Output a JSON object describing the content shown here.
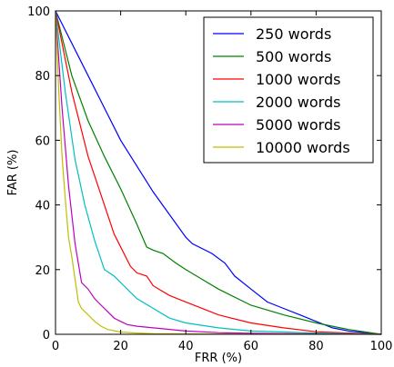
{
  "chart_data": {
    "type": "line",
    "title": "",
    "xlabel": "FRR (%)",
    "ylabel": "FAR (%)",
    "xlim": [
      0,
      100
    ],
    "ylim": [
      0,
      100
    ],
    "xticks": [
      0,
      20,
      40,
      60,
      80,
      100
    ],
    "yticks": [
      0,
      20,
      40,
      60,
      80,
      100
    ],
    "grid": false,
    "legend": "top-right",
    "series": [
      {
        "name": "250 words",
        "color": "#0000ff",
        "x": [
          0,
          10,
          20,
          30,
          40,
          42,
          48,
          52,
          55,
          60,
          65,
          70,
          75,
          80,
          85,
          90,
          95,
          100
        ],
        "y": [
          100,
          80,
          60,
          44,
          30,
          28,
          25,
          22,
          18,
          14,
          10,
          8,
          6,
          4,
          2,
          1,
          0.5,
          0
        ]
      },
      {
        "name": "500 words",
        "color": "#008000",
        "x": [
          0,
          5,
          10,
          15,
          20,
          25,
          28,
          30,
          33,
          37,
          40,
          45,
          50,
          60,
          70,
          80,
          90,
          100
        ],
        "y": [
          100,
          80,
          66,
          55,
          45,
          34,
          27,
          26,
          25,
          22,
          20,
          17,
          14,
          9,
          6,
          3.5,
          1.5,
          0
        ]
      },
      {
        "name": "1000 words",
        "color": "#ff0000",
        "x": [
          0,
          5,
          10,
          15,
          18,
          22,
          23,
          25,
          28,
          30,
          35,
          40,
          50,
          60,
          70,
          80,
          100
        ],
        "y": [
          100,
          75,
          55,
          40,
          31,
          23,
          21,
          19,
          18,
          15,
          12,
          10,
          6,
          3.5,
          2,
          0.8,
          0
        ]
      },
      {
        "name": "2000 words",
        "color": "#00bfbf",
        "x": [
          0,
          3,
          6,
          9,
          12,
          15,
          18,
          20,
          25,
          30,
          35,
          40,
          50,
          60,
          80,
          100
        ],
        "y": [
          100,
          75,
          54,
          40,
          29,
          20,
          18,
          16,
          11,
          8,
          5,
          3.5,
          2,
          1,
          0.4,
          0
        ]
      },
      {
        "name": "5000 words",
        "color": "#bf00bf",
        "x": [
          0,
          2,
          4,
          6,
          8,
          10,
          12,
          14,
          16,
          18,
          20,
          22,
          25,
          30,
          40,
          50,
          60,
          80,
          100
        ],
        "y": [
          100,
          70,
          46,
          28,
          16,
          14,
          11,
          9,
          7,
          5,
          4,
          3,
          2.5,
          2,
          1,
          0.5,
          0.3,
          0.1,
          0
        ]
      },
      {
        "name": "10000 words",
        "color": "#bfbf00",
        "x": [
          0,
          1,
          2,
          3,
          4,
          5,
          6,
          7,
          8,
          10,
          12,
          14,
          16,
          20,
          25,
          30,
          40,
          60,
          100
        ],
        "y": [
          100,
          75,
          55,
          42,
          30,
          24,
          17,
          10,
          8,
          6,
          4,
          2.5,
          1.5,
          0.7,
          0.4,
          0.2,
          0.1,
          0.05,
          0
        ]
      }
    ]
  }
}
